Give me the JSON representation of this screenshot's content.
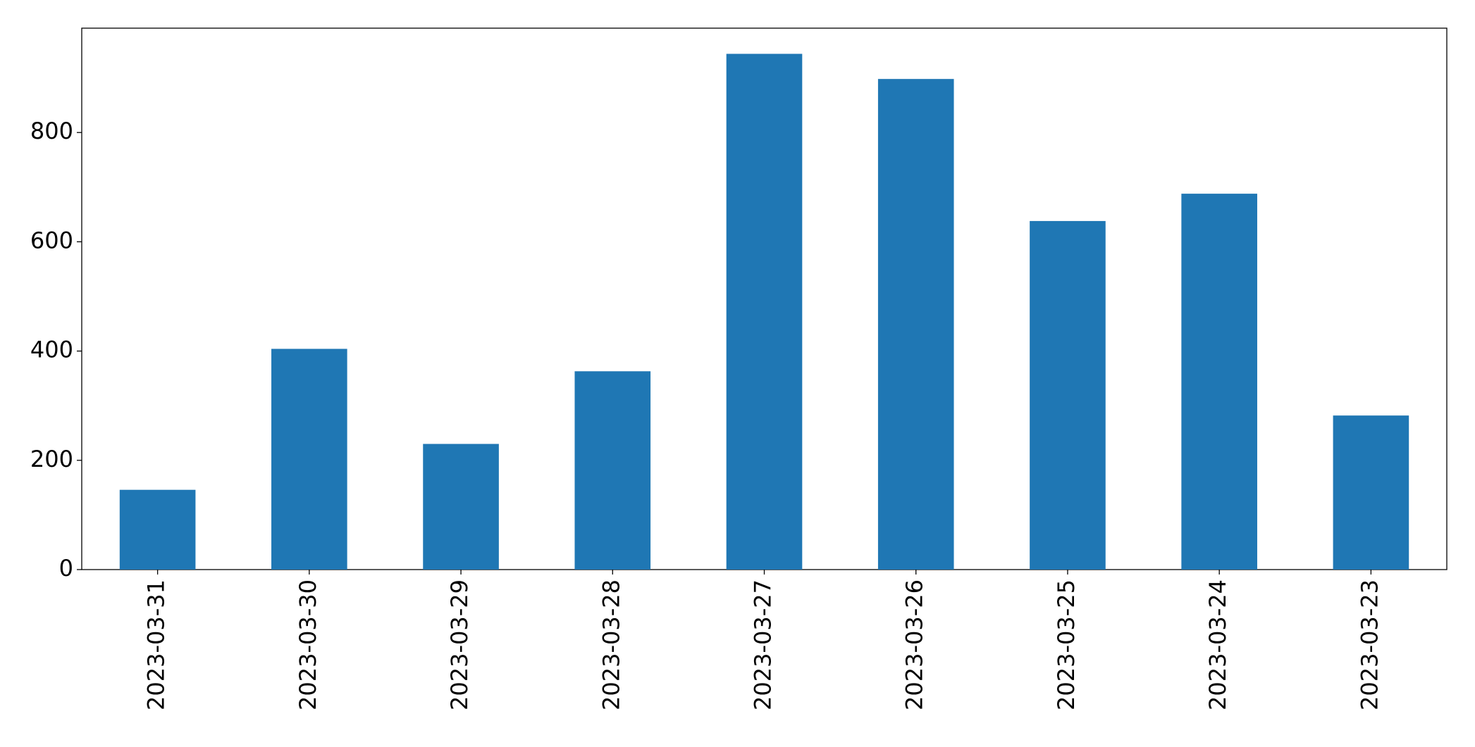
{
  "chart_data": {
    "type": "bar",
    "categories": [
      "2023-03-31",
      "2023-03-30",
      "2023-03-29",
      "2023-03-28",
      "2023-03-27",
      "2023-03-26",
      "2023-03-25",
      "2023-03-24",
      "2023-03-23"
    ],
    "values": [
      146,
      404,
      230,
      363,
      944,
      898,
      638,
      688,
      282
    ],
    "color": "#1f77b4",
    "ylim": [
      0,
      991
    ],
    "yticks": [
      0,
      200,
      400,
      600,
      800
    ],
    "grid": false
  }
}
